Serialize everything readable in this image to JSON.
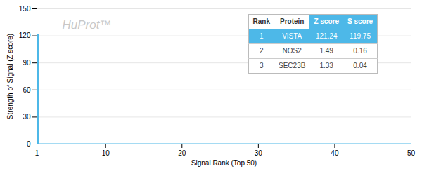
{
  "chart_data": {
    "type": "bar",
    "xlabel": "Signal Rank (Top 50)",
    "ylabel": "Strength of Signal (Z score)",
    "series": [
      {
        "type": "bar",
        "x": [
          1
        ],
        "values": [
          121.24
        ],
        "color": "#4db8e8"
      },
      {
        "type": "line",
        "x": [
          1,
          50
        ],
        "values": [
          0.4,
          0.4
        ],
        "color": "#4db8e8"
      }
    ],
    "xlim": [
      1,
      50
    ],
    "xticks": [
      1,
      10,
      20,
      30,
      40,
      50
    ],
    "ylim": [
      0,
      150
    ],
    "yticks": [
      0,
      30,
      60,
      90,
      120,
      150
    ],
    "grid": true,
    "annotations": [
      {
        "text": "HuProt™",
        "color": "#c8c8c8"
      }
    ],
    "table": {
      "columns": [
        "Rank",
        "Protein",
        "Z score",
        "S score"
      ],
      "rows": [
        [
          "1",
          "VISTA",
          "121.24",
          "119.75"
        ],
        [
          "2",
          "NOS2",
          "1.49",
          "0.16"
        ],
        [
          "3",
          "SEC23B",
          "1.33",
          "0.04"
        ]
      ],
      "color": "#4db8e8"
    }
  }
}
